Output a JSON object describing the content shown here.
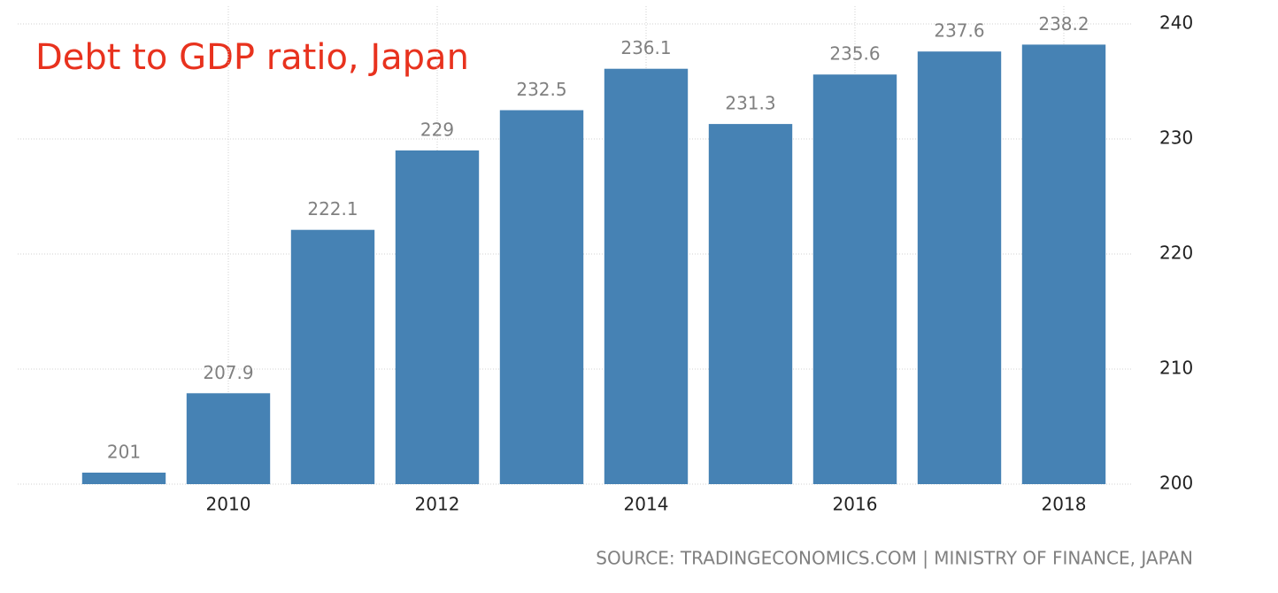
{
  "chart_data": {
    "type": "bar",
    "title": "Debt to GDP ratio, Japan",
    "source": "SOURCE: TRADINGECONOMICS.COM | MINISTRY OF FINANCE, JAPAN",
    "categories": [
      null,
      "2010",
      null,
      "2012",
      null,
      "2014",
      null,
      "2016",
      null,
      "2018"
    ],
    "values": [
      201,
      207.9,
      222.1,
      229,
      232.5,
      236.1,
      231.3,
      235.6,
      237.6,
      238.2
    ],
    "color": "#4682b4",
    "ylim": [
      200,
      240
    ],
    "yticks": [
      200,
      210,
      220,
      230,
      240
    ],
    "grid": true
  }
}
